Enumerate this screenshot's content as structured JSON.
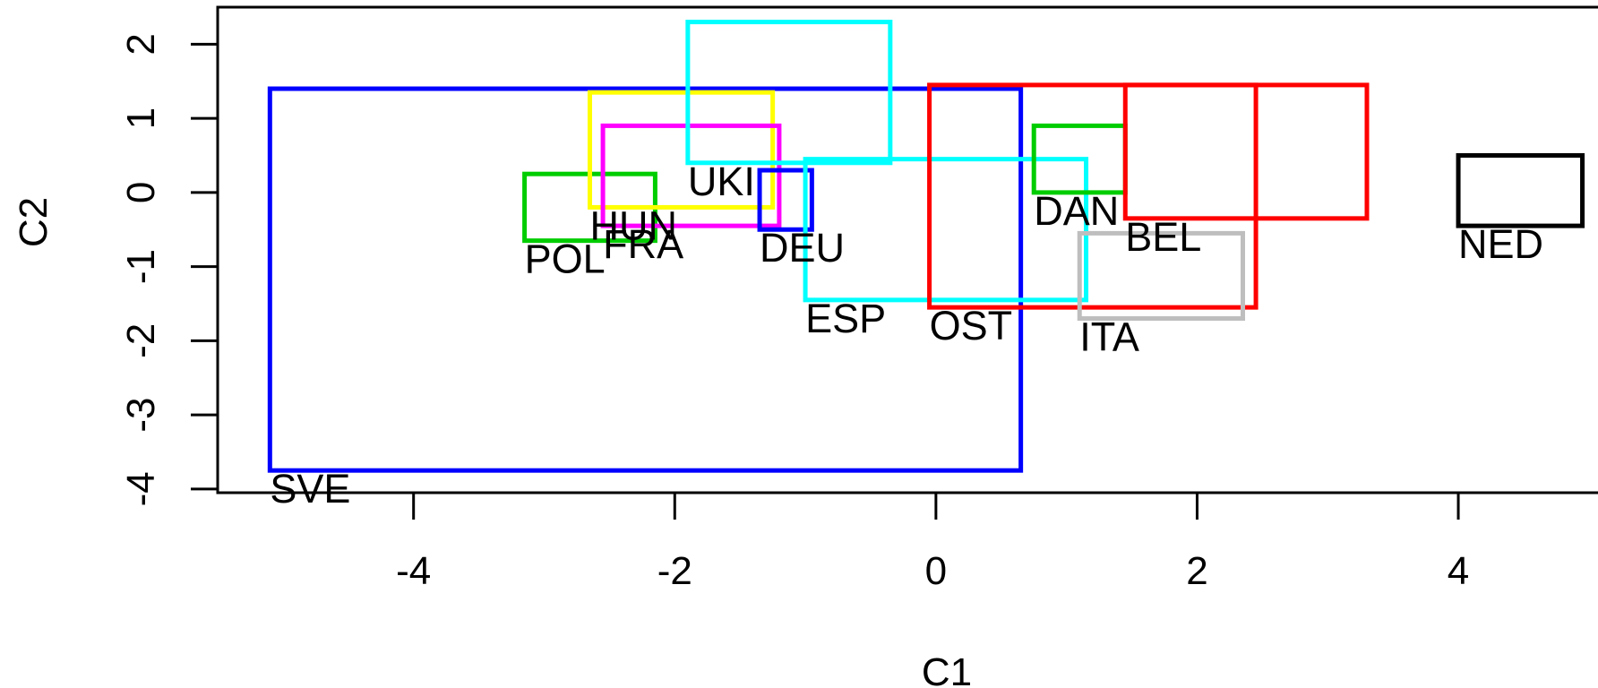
{
  "chart_data": {
    "type": "scatter",
    "title": "",
    "xlabel": "C1",
    "ylabel": "C2",
    "xlim": [
      -5.5,
      5.2
    ],
    "ylim": [
      -4.05,
      2.5
    ],
    "x_ticks": [
      -4,
      -2,
      0,
      2,
      4
    ],
    "y_ticks": [
      -4,
      -3,
      -2,
      -1,
      0,
      1,
      2
    ],
    "x_tick_labels": [
      "-4",
      "-2",
      "0",
      "2",
      "4"
    ],
    "y_tick_labels": [
      "-4",
      "-3",
      "-2",
      "-1",
      "0",
      "1",
      "2"
    ],
    "grid": false,
    "legend": "none",
    "rectangles": [
      {
        "label": "SVE",
        "color": "#0000ff",
        "xmin": -5.1,
        "xmax": 0.65,
        "ymin": -3.75,
        "ymax": 1.4,
        "label_x": -5.1,
        "label_y": -3.75
      },
      {
        "label": "POL",
        "color": "#00cd00",
        "xmin": -3.15,
        "xmax": -2.15,
        "ymin": -0.65,
        "ymax": 0.25,
        "label_x": -3.15,
        "label_y": -0.65
      },
      {
        "label": "HUN",
        "color": "#ffff00",
        "xmin": -2.65,
        "xmax": -1.25,
        "ymin": -0.2,
        "ymax": 1.35,
        "label_x": -2.65,
        "label_y": -0.2
      },
      {
        "label": "FRA",
        "color": "#ff00ff",
        "xmin": -2.55,
        "xmax": -1.2,
        "ymin": -0.45,
        "ymax": 0.9,
        "label_x": -2.55,
        "label_y": -0.45
      },
      {
        "label": "UKI",
        "color": "#00ffff",
        "xmin": -1.9,
        "xmax": -0.35,
        "ymin": 0.4,
        "ymax": 2.3,
        "label_x": -1.9,
        "label_y": 0.4
      },
      {
        "label": "DEU",
        "color": "#0000ff",
        "xmin": -1.35,
        "xmax": -0.95,
        "ymin": -0.5,
        "ymax": 0.3,
        "label_x": -1.35,
        "label_y": -0.5
      },
      {
        "label": "ESP",
        "color": "#00ffff",
        "xmin": -1.0,
        "xmax": 1.15,
        "ymin": -1.45,
        "ymax": 0.45,
        "label_x": -1.0,
        "label_y": -1.45
      },
      {
        "label": "OST",
        "color": "#ff0000",
        "xmin": -0.05,
        "xmax": 2.45,
        "ymin": -1.55,
        "ymax": 1.45,
        "label_x": -0.05,
        "label_y": -1.55
      },
      {
        "label": "DAN",
        "color": "#00cd00",
        "xmin": 0.75,
        "xmax": 1.45,
        "ymin": 0.0,
        "ymax": 0.9,
        "label_x": 0.75,
        "label_y": 0.0
      },
      {
        "label": "BEL",
        "color": "#ff0000",
        "xmin": 1.45,
        "xmax": 3.3,
        "ymin": -0.35,
        "ymax": 1.45,
        "label_x": 1.45,
        "label_y": -0.35
      },
      {
        "label": "ITA",
        "color": "#bebebe",
        "xmin": 1.1,
        "xmax": 2.35,
        "ymin": -1.7,
        "ymax": -0.55,
        "label_x": 1.1,
        "label_y": -1.7
      },
      {
        "label": "NED",
        "color": "#000000",
        "xmin": 4.0,
        "xmax": 4.95,
        "ymin": -0.45,
        "ymax": 0.5,
        "label_x": 4.0,
        "label_y": -0.45
      }
    ]
  }
}
